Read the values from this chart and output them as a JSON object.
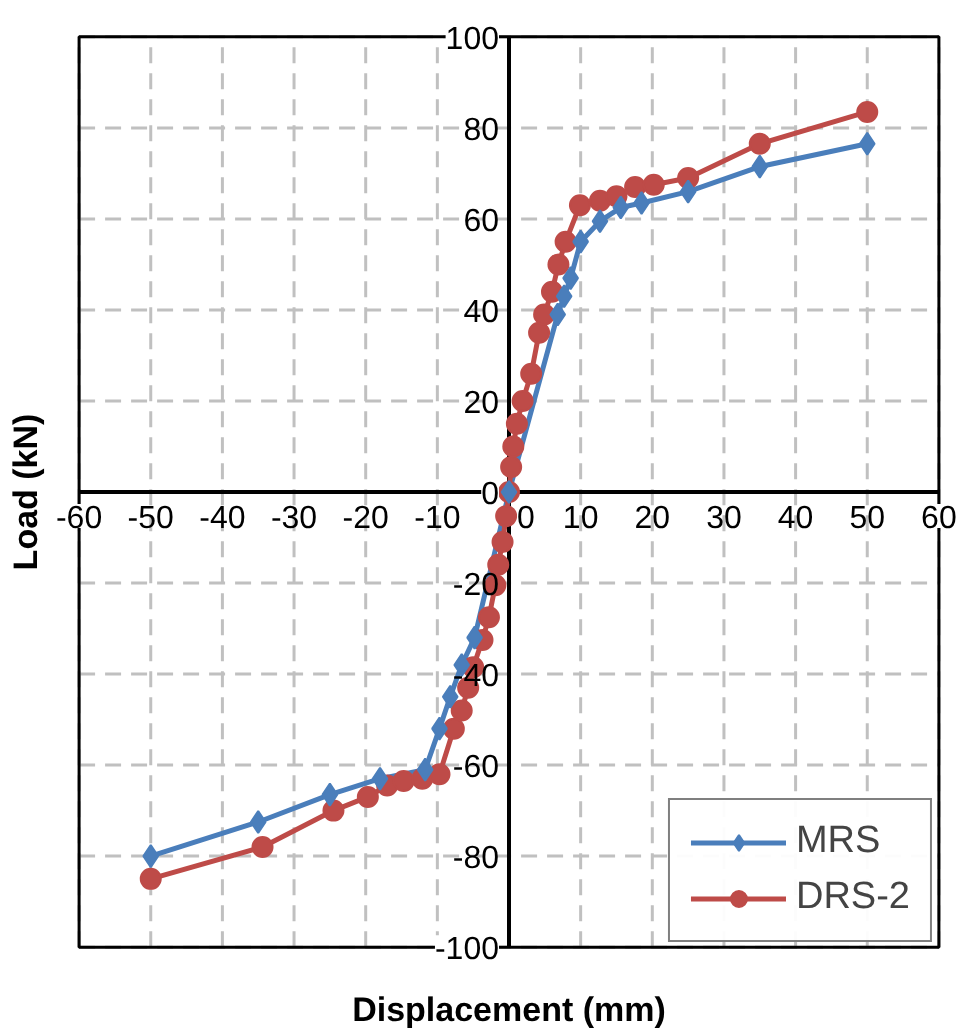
{
  "chart_data": {
    "type": "line",
    "xlabel": "Displacement (mm)",
    "ylabel": "Load (kN)",
    "xlim": [
      -60,
      60
    ],
    "ylim": [
      -100,
      100
    ],
    "xticks": [
      -60,
      -50,
      -40,
      -30,
      -20,
      -10,
      0,
      10,
      20,
      30,
      40,
      50,
      60
    ],
    "yticks": [
      -100,
      -80,
      -60,
      -40,
      -20,
      0,
      20,
      40,
      60,
      80,
      100
    ],
    "grid": true,
    "legend": "bottom right",
    "line_style": "solid",
    "series": [
      {
        "name": "MRS",
        "color": "#4a7ebb",
        "marker": "diamond",
        "x": [
          -50,
          -35,
          -25,
          -18,
          -11.7,
          -9.7,
          -8.2,
          -6.6,
          -4.8,
          0,
          6.8,
          7.7,
          8.6,
          10,
          12.7,
          15.6,
          18.5,
          25,
          35,
          50
        ],
        "values": [
          -80,
          -72.5,
          -66.5,
          -63,
          -61,
          -52,
          -45,
          -38,
          -32,
          0,
          39,
          43,
          47,
          55,
          59.5,
          62.5,
          63.5,
          66,
          71.5,
          76.5
        ]
      },
      {
        "name": "DRS-2",
        "color": "#be4b48",
        "marker": "circle",
        "x": [
          -50,
          -34.4,
          -24.5,
          -19.7,
          -17,
          -14.7,
          -12.1,
          -9.7,
          -7.7,
          -6.6,
          -5.7,
          -5,
          -3.7,
          -2.8,
          -1.9,
          -1.5,
          -0.9,
          -0.4,
          0,
          0.3,
          0.6,
          1.1,
          1.9,
          3.1,
          4.2,
          4.9,
          6,
          6.9,
          7.9,
          9.9,
          12.7,
          15,
          17.6,
          20.2,
          25,
          35,
          50
        ],
        "values": [
          -85,
          -78,
          -70,
          -67,
          -64.5,
          -63.5,
          -63,
          -62,
          -52,
          -48,
          -43,
          -38.5,
          -32.5,
          -27.5,
          -20.5,
          -16,
          -11,
          -5.3,
          0,
          5.5,
          10,
          15,
          20,
          26,
          35,
          39,
          44,
          50,
          55,
          63,
          64,
          65,
          67,
          67.5,
          69,
          76.5,
          83.5
        ]
      }
    ]
  }
}
